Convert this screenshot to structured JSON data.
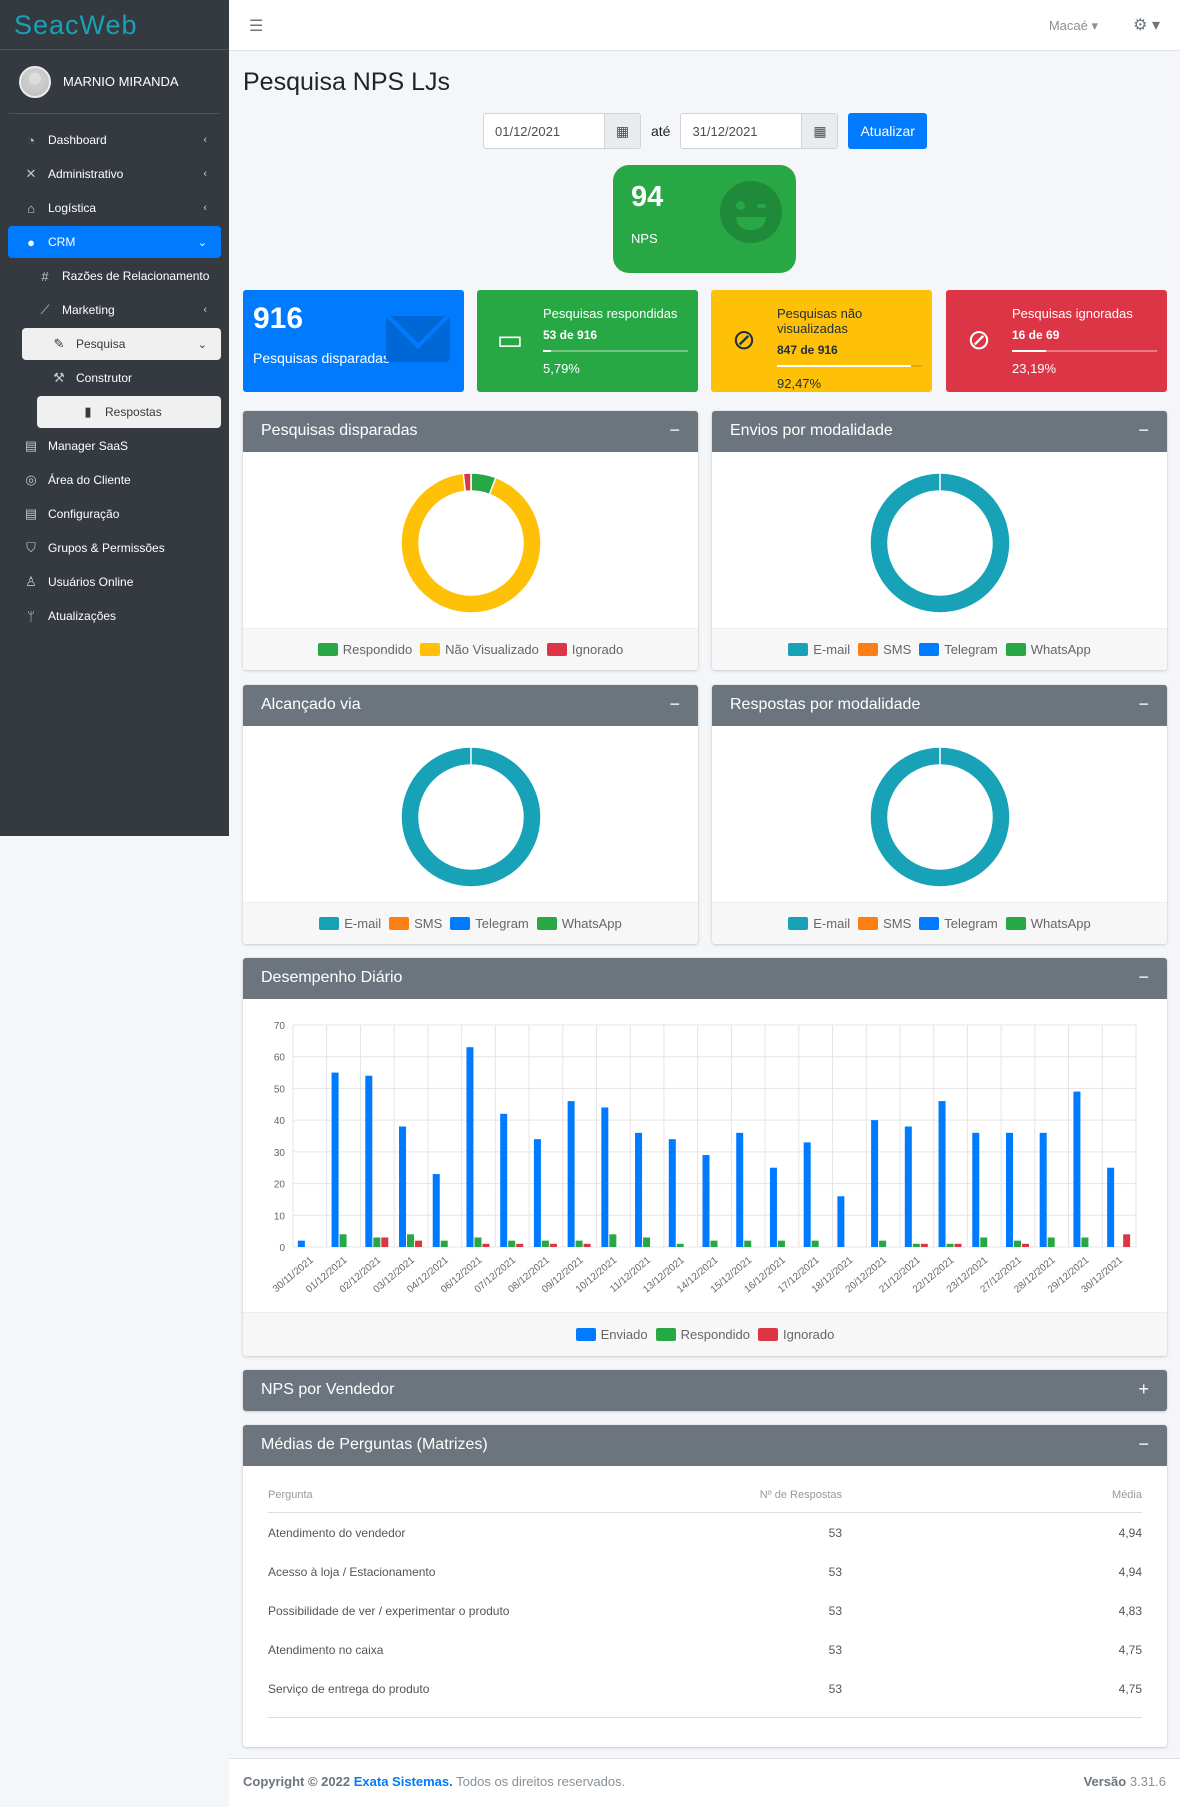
{
  "brand": "SeacWeb",
  "user": {
    "name": "MARNIO MIRANDA"
  },
  "sidebar": {
    "items": [
      {
        "label": "Dashboard",
        "icon": "gauge-icon",
        "level": 0,
        "chevron": "‹",
        "active": false
      },
      {
        "label": "Administrativo",
        "icon": "tools-icon",
        "level": 0,
        "chevron": "‹",
        "active": false
      },
      {
        "label": "Logística",
        "icon": "warehouse-icon",
        "level": 0,
        "chevron": "‹",
        "active": false
      },
      {
        "label": "CRM",
        "icon": "comments-icon",
        "level": 0,
        "chevron": "⌄",
        "active": true
      },
      {
        "label": "Razões de Relacionamento",
        "icon": "hashtag-icon",
        "level": 1,
        "chevron": "",
        "active": false
      },
      {
        "label": "Marketing",
        "icon": "chart-line-icon",
        "level": 1,
        "chevron": "‹",
        "active": false
      },
      {
        "label": "Pesquisa",
        "icon": "edit-icon",
        "level": 1,
        "chevron": "⌄",
        "active": false,
        "highlight": true
      },
      {
        "label": "Construtor",
        "icon": "hammer-icon",
        "level": 2,
        "chevron": "",
        "active": false
      },
      {
        "label": "Respostas",
        "icon": "bar-chart-icon",
        "level": 2,
        "chevron": "",
        "active": false,
        "highlight": true
      },
      {
        "label": "Manager SaaS",
        "icon": "file-icon",
        "level": 0,
        "chevron": "",
        "active": false
      },
      {
        "label": "Área do Cliente",
        "icon": "fingerprint-icon",
        "level": 0,
        "chevron": "",
        "active": false
      },
      {
        "label": "Configuração",
        "icon": "clipboard-icon",
        "level": 0,
        "chevron": "",
        "active": false
      },
      {
        "label": "Grupos & Permissões",
        "icon": "shield-icon",
        "level": 0,
        "chevron": "",
        "active": false
      },
      {
        "label": "Usuários Online",
        "icon": "user-online-icon",
        "level": 0,
        "chevron": "",
        "active": false
      },
      {
        "label": "Atualizações",
        "icon": "code-branch-icon",
        "level": 0,
        "chevron": "",
        "active": false
      }
    ]
  },
  "topbar": {
    "city": "Macaé"
  },
  "page": {
    "title": "Pesquisa NPS LJs"
  },
  "filters": {
    "date_from": "01/12/2021",
    "sep": "até",
    "date_to": "31/12/2021",
    "update_label": "Atualizar"
  },
  "nps": {
    "value": "94",
    "label": "NPS"
  },
  "stats": {
    "disparadas": {
      "value": "916",
      "label": "Pesquisas disparadas"
    },
    "respondidas": {
      "title": "Pesquisas respondidas",
      "count": "53 de 916",
      "pct": "5,79%",
      "fraction": 0.0579
    },
    "nao_visualizadas": {
      "title": "Pesquisas não visualizadas",
      "count": "847 de 916",
      "pct": "92,47%",
      "fraction": 0.9247
    },
    "ignoradas": {
      "title": "Pesquisas ignoradas",
      "count": "16 de 69",
      "pct": "23,19%",
      "fraction": 0.2319
    }
  },
  "cards": {
    "disparadas": {
      "title": "Pesquisas disparadas",
      "tool": "−"
    },
    "envios": {
      "title": "Envios por modalidade",
      "tool": "−"
    },
    "alcancado": {
      "title": "Alcançado via",
      "tool": "−"
    },
    "respostas": {
      "title": "Respostas por modalidade",
      "tool": "−"
    },
    "diario": {
      "title": "Desempenho Diário",
      "tool": "−"
    },
    "vendedor": {
      "title": "NPS por Vendedor",
      "tool": "+"
    },
    "medias": {
      "title": "Médias de Perguntas (Matrizes)",
      "tool": "−"
    }
  },
  "colors": {
    "email": "#17a2b8",
    "sms": "#fd7e14",
    "telegram": "#007bff",
    "whatsapp": "#28a745",
    "respondido": "#28a745",
    "nao_visualizado": "#ffc107",
    "ignorado": "#dc3545",
    "enviado": "#007bff"
  },
  "legend_status": [
    "Respondido",
    "Não Visualizado",
    "Ignorado"
  ],
  "legend_channels": [
    "E-mail",
    "SMS",
    "Telegram",
    "WhatsApp"
  ],
  "legend_daily": [
    "Enviado",
    "Respondido",
    "Ignorado"
  ],
  "chart_data": [
    {
      "type": "pie",
      "title": "Pesquisas disparadas",
      "categories": [
        "Respondido",
        "Não Visualizado",
        "Ignorado"
      ],
      "values": [
        53,
        847,
        16
      ]
    },
    {
      "type": "pie",
      "title": "Envios por modalidade",
      "categories": [
        "E-mail",
        "SMS",
        "Telegram",
        "WhatsApp"
      ],
      "values": [
        916,
        0,
        0,
        0
      ]
    },
    {
      "type": "pie",
      "title": "Alcançado via",
      "categories": [
        "E-mail",
        "SMS",
        "Telegram",
        "WhatsApp"
      ],
      "values": [
        100,
        0,
        0,
        0
      ]
    },
    {
      "type": "pie",
      "title": "Respostas por modalidade",
      "categories": [
        "E-mail",
        "SMS",
        "Telegram",
        "WhatsApp"
      ],
      "values": [
        53,
        0,
        0,
        0
      ]
    },
    {
      "type": "bar",
      "title": "Desempenho Diário",
      "categories": [
        "30/11/2021",
        "01/12/2021",
        "02/12/2021",
        "03/12/2021",
        "04/12/2021",
        "06/12/2021",
        "07/12/2021",
        "08/12/2021",
        "09/12/2021",
        "10/12/2021",
        "11/12/2021",
        "13/12/2021",
        "14/12/2021",
        "15/12/2021",
        "16/12/2021",
        "17/12/2021",
        "18/12/2021",
        "20/12/2021",
        "21/12/2021",
        "22/12/2021",
        "23/12/2021",
        "27/12/2021",
        "28/12/2021",
        "29/12/2021",
        "30/12/2021"
      ],
      "series": [
        {
          "name": "Enviado",
          "values": [
            2,
            55,
            54,
            38,
            23,
            63,
            42,
            34,
            46,
            44,
            36,
            34,
            29,
            36,
            25,
            33,
            16,
            40,
            38,
            46,
            36,
            36,
            36,
            49,
            25
          ]
        },
        {
          "name": "Respondido",
          "values": [
            0,
            4,
            3,
            4,
            2,
            3,
            2,
            2,
            2,
            4,
            3,
            1,
            2,
            2,
            2,
            2,
            0,
            2,
            1,
            1,
            3,
            2,
            3,
            3,
            0
          ]
        },
        {
          "name": "Ignorado",
          "values": [
            0,
            0,
            3,
            2,
            0,
            1,
            1,
            1,
            1,
            0,
            0,
            0,
            0,
            0,
            0,
            0,
            0,
            0,
            1,
            1,
            0,
            1,
            0,
            0,
            4
          ]
        }
      ],
      "ylim": [
        0,
        70
      ],
      "yticks": [
        0,
        10,
        20,
        30,
        40,
        50,
        60,
        70
      ],
      "grid": true,
      "legend": "bottom"
    }
  ],
  "table": {
    "headers": [
      "Pergunta",
      "Nº de Respostas",
      "Média"
    ],
    "rows": [
      [
        "Atendimento do vendedor",
        "53",
        "4,94"
      ],
      [
        "Acesso à loja / Estacionamento",
        "53",
        "4,94"
      ],
      [
        "Possibilidade de ver / experimentar o produto",
        "53",
        "4,83"
      ],
      [
        "Atendimento no caixa",
        "53",
        "4,75"
      ],
      [
        "Serviço de entrega do produto",
        "53",
        "4,75"
      ]
    ]
  },
  "footer": {
    "copyright": "Copyright © 2022",
    "company": "Exata Sistemas.",
    "rights": "Todos os direitos reservados.",
    "version_label": "Versão",
    "version": "3.31.6"
  }
}
